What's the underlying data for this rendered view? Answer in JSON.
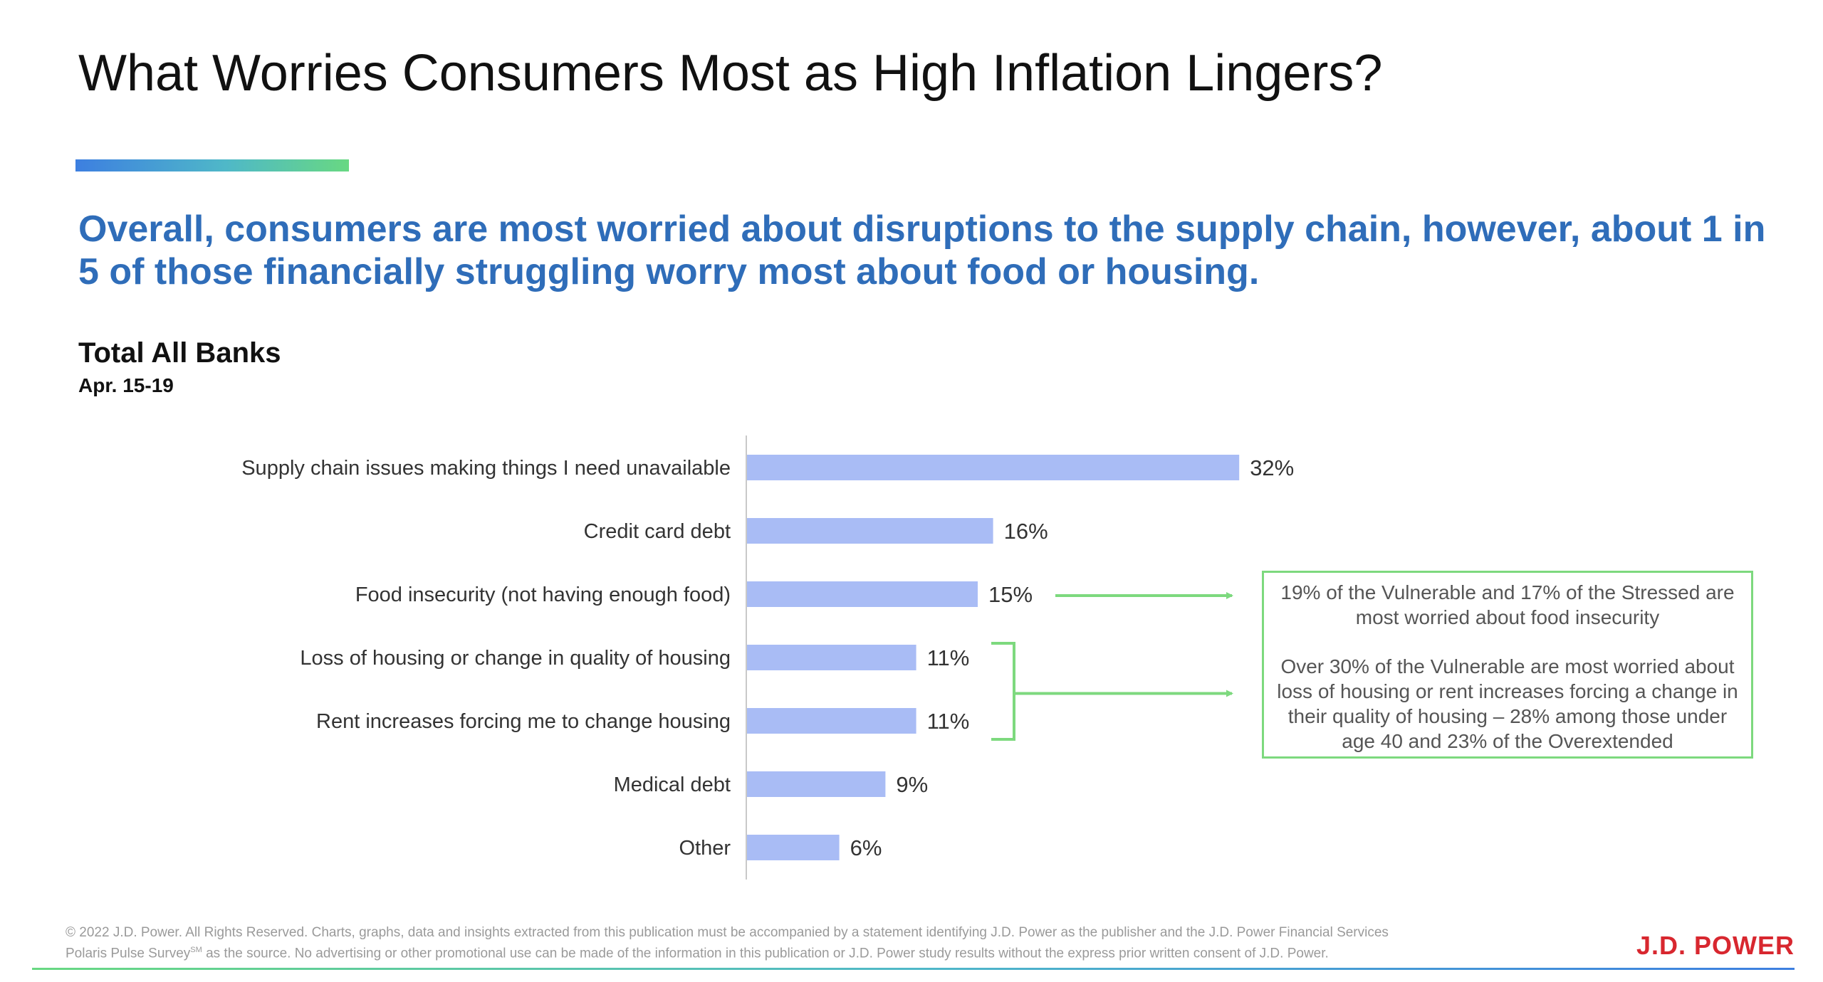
{
  "page": {
    "title": "What Worries Consumers Most as High Inflation Lingers?",
    "headline": "Overall, consumers are most worried about disruptions to the supply chain, however, about 1 in 5 of those financially struggling worry most about food or housing.",
    "accent_colors": [
      "#3d7fe0",
      "#68d882"
    ],
    "headline_color": "#2f6db9"
  },
  "chart_data": {
    "type": "bar",
    "orientation": "horizontal",
    "title": "Total All Banks",
    "subtitle": "Apr. 15-19",
    "categories": [
      "Supply chain issues making things I need unavailable",
      "Credit card debt",
      "Food insecurity (not having enough food)",
      "Loss of housing or change in quality of housing",
      "Rent increases forcing me to change housing",
      "Medical debt",
      "Other"
    ],
    "values": [
      32,
      16,
      15,
      11,
      11,
      9,
      6
    ],
    "value_labels": [
      "32%",
      "16%",
      "15%",
      "11%",
      "11%",
      "9%",
      "6%"
    ],
    "unit": "%",
    "xlim": [
      0,
      35
    ],
    "grid": false,
    "legend": "none",
    "bar_color": "#a9bcf5",
    "annotation_color": "#7dd97e"
  },
  "callout": {
    "food": "19% of the Vulnerable and 17% of the Stressed are most worried about food insecurity",
    "housing": "Over 30% of the Vulnerable are most worried about loss of housing or rent increases forcing a change in their quality of housing – 28% among those under age 40 and 23% of the Overextended"
  },
  "footer": {
    "copyright_line1": "© 2022 J.D. Power. All Rights Reserved. Charts, graphs, data and insights extracted from this publication must be accompanied by a statement identifying J.D. Power as the publisher and the J.D. Power Financial Services",
    "survey_name": "Polaris Pulse Survey",
    "service_mark": "SM",
    "copyright_line2": " as the source. No advertising or other promotional use can be made of the information in this publication or J.D. Power study results without the express prior written consent of J.D. Power.",
    "brand": "J.D. POWER",
    "brand_color": "#d8272f"
  }
}
